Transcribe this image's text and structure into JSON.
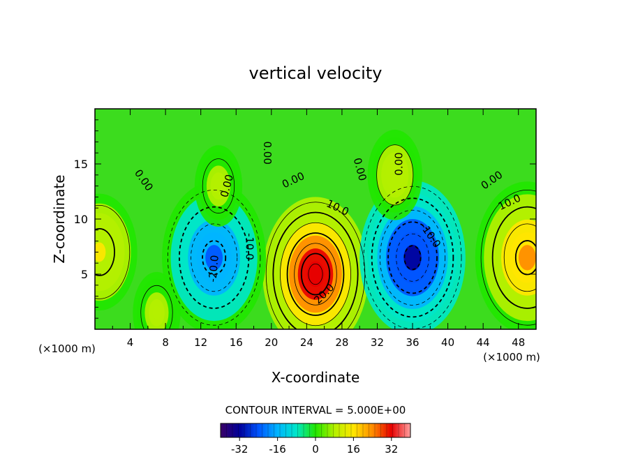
{
  "chart_data": {
    "type": "heatmap",
    "title": "vertical velocity",
    "xlabel": "X-coordinate",
    "ylabel": "Z-coordinate",
    "x_unit_left": "(×1000 m)",
    "x_unit_right": "(×1000 m)",
    "xlim": [
      0,
      50
    ],
    "ylim": [
      0,
      20
    ],
    "x_ticks": [
      4,
      8,
      12,
      16,
      20,
      24,
      28,
      32,
      36,
      40,
      44,
      48
    ],
    "y_ticks": [
      5,
      10,
      15
    ],
    "contour_interval_text": "CONTOUR INTERVAL = 5.000E+00",
    "colorbar": {
      "range": [
        -40,
        40
      ],
      "ticks": [
        -32,
        -16,
        0,
        16,
        32
      ],
      "colors": [
        "#3a0066",
        "#00009a",
        "#0055ff",
        "#00b4ff",
        "#00e6c8",
        "#22e600",
        "#b4f000",
        "#ffe600",
        "#ff8c00",
        "#e60000",
        "#ffa0a0"
      ]
    },
    "features": [
      {
        "label": "updraft",
        "x": 25,
        "z": 5,
        "peak": 35
      },
      {
        "label": "downdraft",
        "x": 13.5,
        "z": 6.5,
        "peak": -22
      },
      {
        "label": "downdraft",
        "x": 36,
        "z": 6.5,
        "peak": -32
      },
      {
        "label": "updraft",
        "x": 49,
        "z": 6.5,
        "peak": 22
      },
      {
        "label": "updraft",
        "x": 0.5,
        "z": 7,
        "peak": 14
      },
      {
        "label": "updraft",
        "x": 7,
        "z": 1.5,
        "peak": 6
      },
      {
        "label": "updraft",
        "x": 14,
        "z": 13,
        "peak": 6
      },
      {
        "label": "updraft",
        "x": 34,
        "z": 14,
        "peak": 8
      }
    ],
    "contour_labels": [
      {
        "text": "0.00",
        "x": 5.5,
        "z": 13.5,
        "rot": 55
      },
      {
        "text": "0.00",
        "x": 15,
        "z": 13,
        "rot": -75
      },
      {
        "text": "0.00",
        "x": 19.5,
        "z": 16,
        "rot": 90
      },
      {
        "text": "0.00",
        "x": 22.5,
        "z": 13.5,
        "rot": -25
      },
      {
        "text": "0.00",
        "x": 30,
        "z": 14.5,
        "rot": 75
      },
      {
        "text": "0.00",
        "x": 34.5,
        "z": 15,
        "rot": -90
      },
      {
        "text": "0.00",
        "x": 45,
        "z": 13.5,
        "rot": -35
      },
      {
        "text": "10.0",
        "x": 27.5,
        "z": 11,
        "rot": 25
      },
      {
        "text": "20.0",
        "x": 26,
        "z": 3.2,
        "rot": -45
      },
      {
        "text": "-10.0",
        "x": 17.5,
        "z": 7.5,
        "rot": 90
      },
      {
        "text": "-10.0",
        "x": 38,
        "z": 8.5,
        "rot": 55
      },
      {
        "text": "-20.0",
        "x": 13.5,
        "z": 5.5,
        "rot": -85
      },
      {
        "text": "10.0",
        "x": 47,
        "z": 11.5,
        "rot": -25
      }
    ]
  }
}
